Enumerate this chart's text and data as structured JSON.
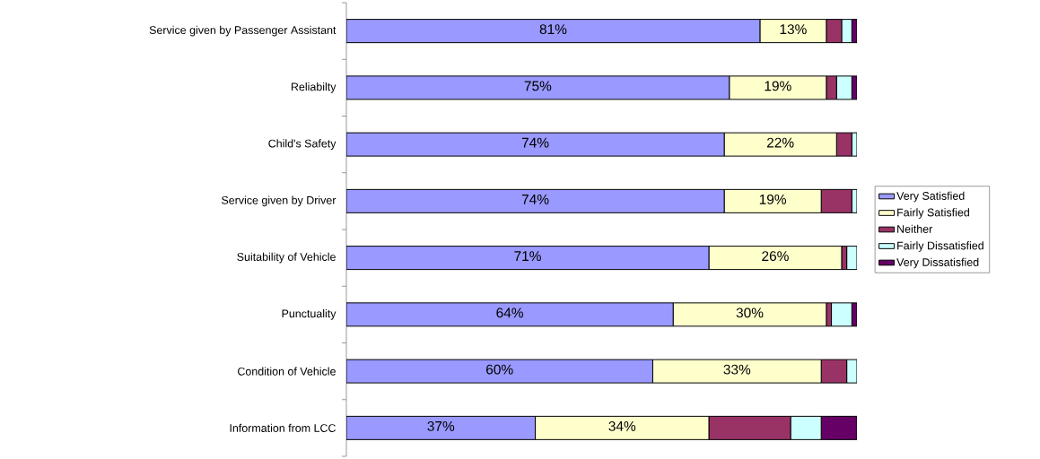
{
  "chart_data": {
    "type": "bar",
    "orientation": "horizontal",
    "stacked": true,
    "legend": "right",
    "categories": [
      "Service given by Passenger Assistant",
      "Reliabilty",
      "Child's Safety",
      "Service given by Driver",
      "Suitability of Vehicle",
      "Punctuality",
      "Condition of Vehicle",
      "Information from LCC"
    ],
    "series": [
      {
        "name": "Very Satisfied",
        "color": "#9999ff",
        "values": [
          81,
          75,
          74,
          74,
          71,
          64,
          60,
          37
        ],
        "value_labels": [
          "81%",
          "75%",
          "74%",
          "74%",
          "71%",
          "64%",
          "60%",
          "37%"
        ]
      },
      {
        "name": "Fairly Satisfied",
        "color": "#ffffcc",
        "values": [
          13,
          19,
          22,
          19,
          26,
          30,
          33,
          34
        ],
        "value_labels": [
          "13%",
          "19%",
          "22%",
          "19%",
          "26%",
          "30%",
          "33%",
          "34%"
        ]
      },
      {
        "name": "Neither",
        "color": "#993366",
        "values": [
          3,
          2,
          3,
          6,
          1,
          1,
          5,
          16
        ]
      },
      {
        "name": "Fairly Dissatisfied",
        "color": "#ccffff",
        "values": [
          2,
          3,
          1,
          1,
          2,
          4,
          2,
          6
        ]
      },
      {
        "name": "Very Dissatisfied",
        "color": "#660066",
        "values": [
          1,
          1,
          0,
          0,
          0,
          1,
          0,
          7
        ]
      }
    ]
  }
}
